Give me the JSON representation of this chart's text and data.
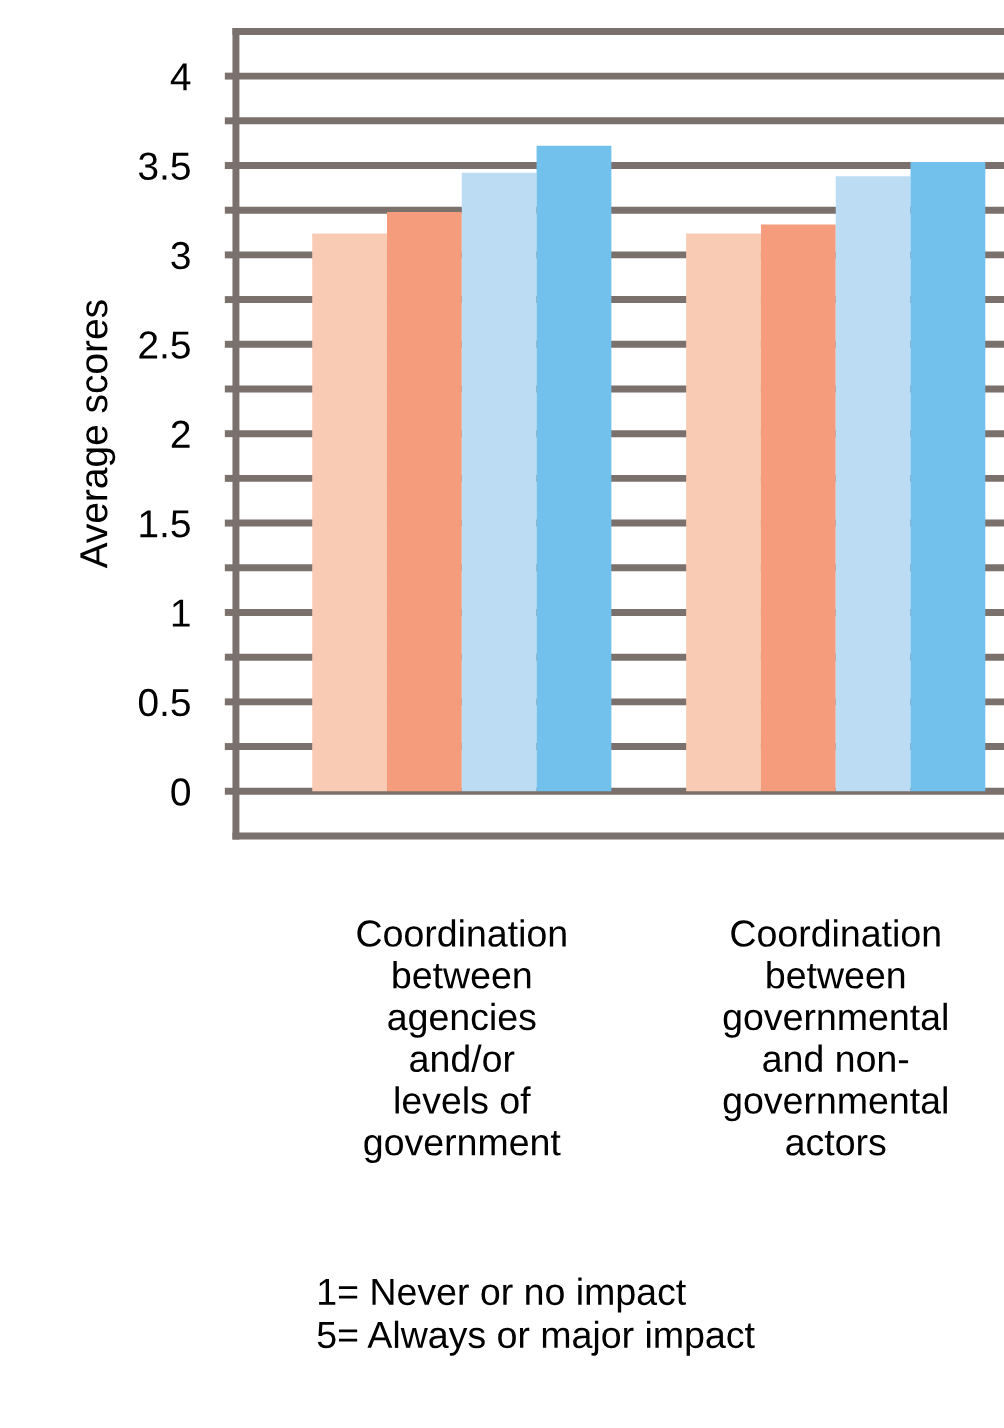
{
  "chart_data": {
    "type": "bar",
    "ylabel": "Average scores",
    "categories": [
      "Coordination\nbetween\nagencies\nand/or\nlevels of\ngovernment",
      "Coordination\nbetween\ngovernmental\nand non-\ngovernmental\nactors"
    ],
    "series": [
      {
        "color": "#f9cbb4",
        "values": [
          3.12,
          3.12
        ]
      },
      {
        "color": "#f59c7c",
        "values": [
          3.24,
          3.17
        ]
      },
      {
        "color": "#bbdcf3",
        "values": [
          3.46,
          3.44
        ]
      },
      {
        "color": "#72c1ec",
        "values": [
          3.61,
          3.52
        ]
      }
    ],
    "ylim": [
      -0.25,
      4.25
    ],
    "yticks": [
      0,
      {
        "value": 0.25,
        "label": null
      },
      0.5,
      {
        "value": 0.75,
        "label": null
      },
      1,
      {
        "value": 1.25,
        "label": null
      },
      1.5,
      {
        "value": 1.75,
        "label": null
      },
      2,
      {
        "value": 2.25,
        "label": null
      },
      2.5,
      {
        "value": 2.75,
        "label": null
      },
      3,
      {
        "value": 3.25,
        "label": null
      },
      3.5,
      {
        "value": 3.75,
        "label": null
      },
      4
    ],
    "grid": "y",
    "annotations": [
      "1= Never or no impact\n5= Always or major impact"
    ]
  }
}
